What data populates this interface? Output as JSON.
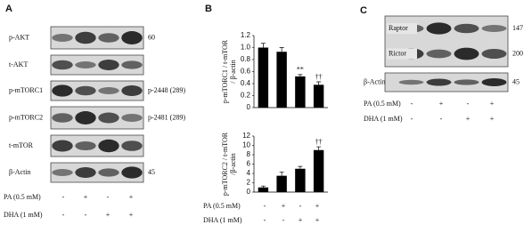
{
  "panel_a": {
    "label": "A",
    "blots": [
      {
        "label": "p-AKT",
        "size": "60"
      },
      {
        "label": "t-AKT",
        "size": null
      },
      {
        "label": "p-mTORC1",
        "size": "p-2448 (289)"
      },
      {
        "label": "p-mTORC2",
        "size": "p-2481 (289)"
      },
      {
        "label": "t-mTOR",
        "size": null
      },
      {
        "label": "β-Actin",
        "size": "45"
      }
    ],
    "treatments": [
      {
        "label": "PA (0.5 mM)",
        "signs": [
          "-",
          "+",
          "-",
          "+"
        ]
      },
      {
        "label": "DHA (1 mM)",
        "signs": [
          "-",
          "-",
          "+",
          "+"
        ]
      }
    ]
  },
  "panel_b": {
    "label": "B",
    "treatments": [
      {
        "label": "PA (0.5 mM)",
        "signs": [
          "-",
          "+",
          "-",
          "+"
        ]
      },
      {
        "label": "DHA (1 mM)",
        "signs": [
          "-",
          "-",
          "+",
          "+"
        ]
      }
    ]
  },
  "panel_c": {
    "label": "C",
    "blots": [
      {
        "label": "Raptor",
        "size": "147"
      },
      {
        "label": "Rictor",
        "size": "200"
      },
      {
        "label": "β-Actin",
        "size": "45"
      }
    ],
    "treatments": [
      {
        "label": "PA (0.5 mM)",
        "signs": [
          "-",
          "+",
          "-",
          "+"
        ]
      },
      {
        "label": "DHA (1 mM)",
        "signs": [
          "-",
          "-",
          "+",
          "+"
        ]
      }
    ]
  },
  "chart_data": [
    {
      "type": "bar",
      "ylabel": [
        "p-mTORC1 / t-mTOR",
        "/ β-actin"
      ],
      "categories": [
        null,
        null,
        null,
        null
      ],
      "values": [
        1.0,
        0.93,
        0.52,
        0.38
      ],
      "errors": [
        0.07,
        0.07,
        0.03,
        0.05
      ],
      "value_annotations": [
        null,
        null,
        "**",
        "††"
      ],
      "color": "#000000",
      "ylim": [
        0,
        1.2
      ],
      "yticks": [
        0,
        0.2,
        0.4,
        0.6,
        0.8,
        {
          "value": 1,
          "label": "1.0"
        },
        1.2
      ]
    },
    {
      "type": "bar",
      "ylabel": [
        "p-mTORC2 / t-mTOR",
        "/β-actin"
      ],
      "categories": [
        null,
        null,
        null,
        null
      ],
      "values": [
        1,
        3.5,
        5,
        9
      ],
      "errors": [
        0.3,
        0.8,
        0.5,
        0.7
      ],
      "value_annotations": [
        null,
        null,
        null,
        "††"
      ],
      "color": "#000000",
      "ylim": [
        0,
        12
      ],
      "yticks": [
        0,
        2,
        4,
        6,
        8,
        10,
        12
      ]
    }
  ]
}
